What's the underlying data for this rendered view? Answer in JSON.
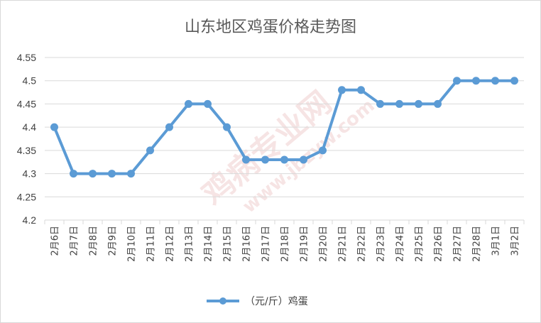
{
  "chart_data": {
    "type": "line",
    "title": "山东地区鸡蛋价格走势图",
    "categories": [
      "2月6日",
      "2月7日",
      "2月8日",
      "2月9日",
      "2月10日",
      "2月11日",
      "2月12日",
      "2月13日",
      "2月14日",
      "2月15日",
      "2月16日",
      "2月17日",
      "2月18日",
      "2月19日",
      "2月20日",
      "2月21日",
      "2月22日",
      "2月23日",
      "2月24日",
      "2月25日",
      "2月26日",
      "2月27日",
      "2月28日",
      "3月1日",
      "3月2日"
    ],
    "series": [
      {
        "name": "（元/斤）鸡蛋",
        "values": [
          4.4,
          4.3,
          4.3,
          4.3,
          4.3,
          4.35,
          4.4,
          4.45,
          4.45,
          4.4,
          4.33,
          4.33,
          4.33,
          4.33,
          4.35,
          4.48,
          4.48,
          4.45,
          4.45,
          4.45,
          4.45,
          4.5,
          4.5,
          4.5,
          4.5
        ],
        "color": "#5b9bd5"
      }
    ],
    "ylim": [
      4.2,
      4.55
    ],
    "yticks": [
      "4.2",
      "4.25",
      "4.3",
      "4.35",
      "4.4",
      "4.45",
      "4.5",
      "4.55"
    ],
    "grid": true,
    "legend": "bottom-center",
    "watermark": [
      "鸡病专业网",
      "www.jbzyw.com"
    ]
  }
}
